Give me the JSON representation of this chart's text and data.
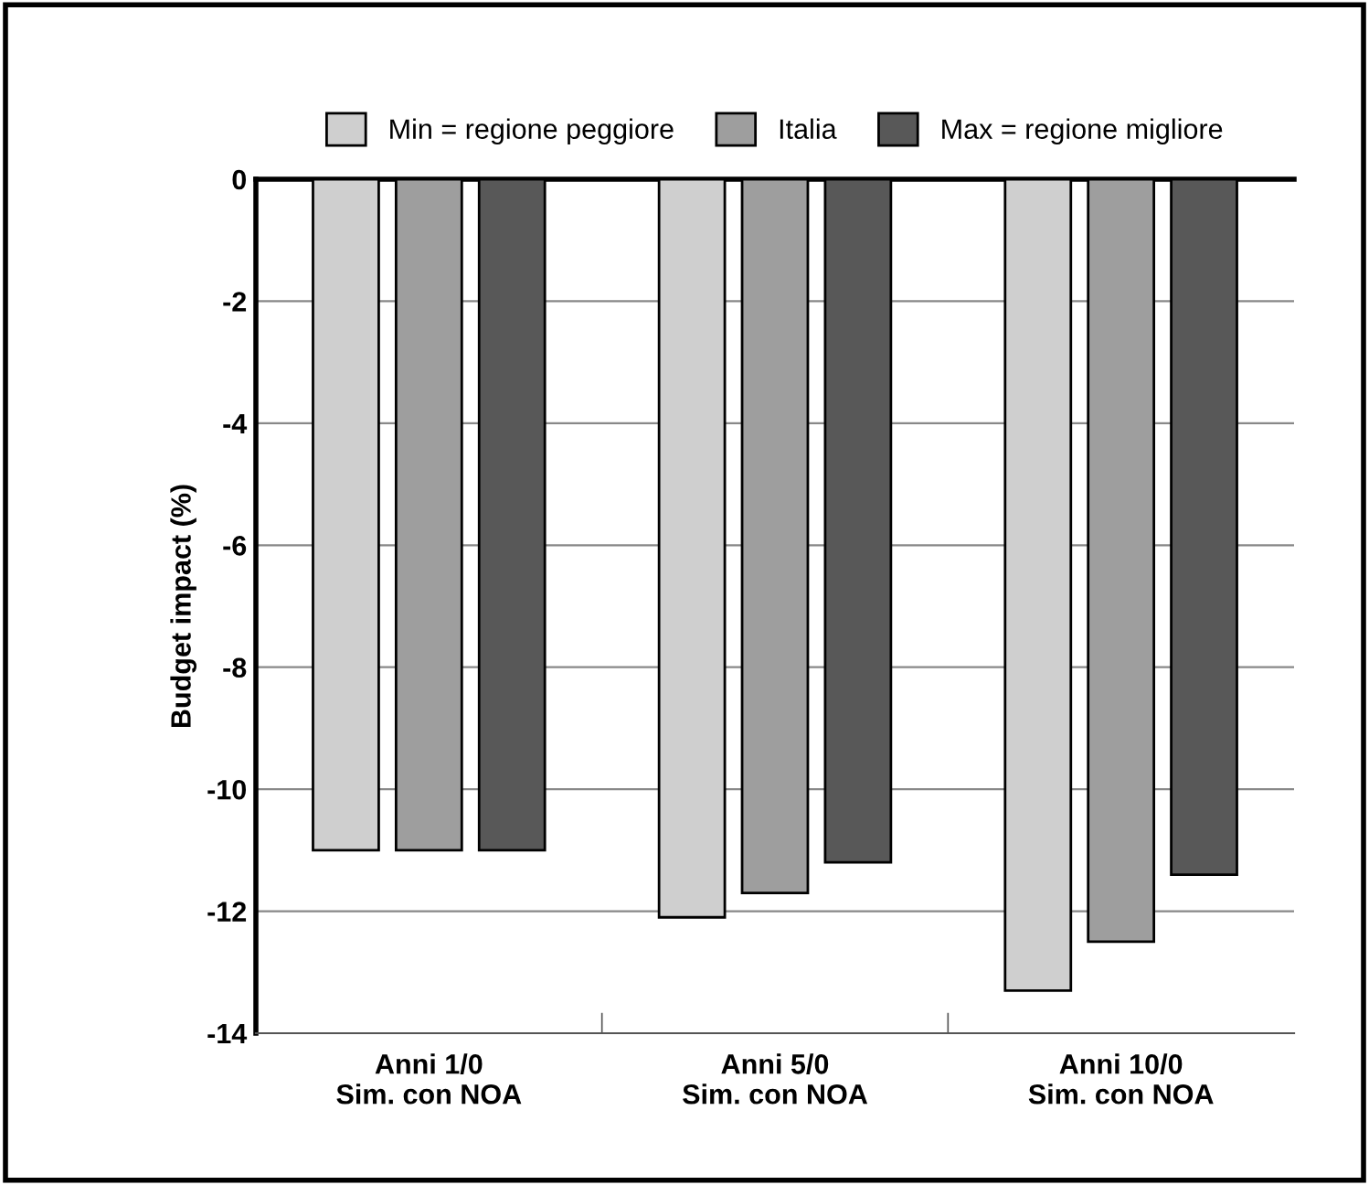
{
  "chart_data": {
    "type": "bar",
    "ylabel": "Budget impact (%)",
    "categories": [
      "Anni 1/0\nSim. con NOA",
      "Anni 5/0\nSim. con NOA",
      "Anni 10/0\nSim. con NOA"
    ],
    "series": [
      {
        "name": "Min = regione peggiore",
        "color": "#cfcfcf",
        "values": [
          -11.0,
          -12.1,
          -13.3
        ]
      },
      {
        "name": "Italia",
        "color": "#9e9e9e",
        "values": [
          -11.0,
          -11.7,
          -12.5
        ]
      },
      {
        "name": "Max = regione migliore",
        "color": "#585858",
        "values": [
          -11.0,
          -11.2,
          -11.4
        ]
      }
    ],
    "ylim": [
      -14,
      0
    ],
    "yticks": [
      -14,
      -12,
      -10,
      -8,
      -6,
      -4,
      -2,
      0
    ],
    "grid": "y",
    "legend": "top"
  }
}
